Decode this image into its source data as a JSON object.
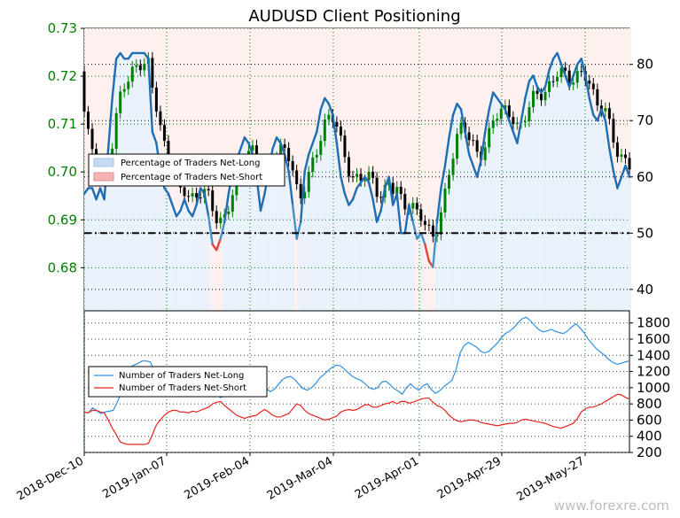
{
  "chart_data": [
    {
      "type": "line",
      "title": "AUDUSD Client Positioning",
      "x_ticks": [
        "2018-Dec-10",
        "2019-Jan-07",
        "2019-Feb-04",
        "2019-Mar-04",
        "2019-Apr-01",
        "2019-Apr-29",
        "2019-May-27"
      ],
      "y_left_ticks": [
        "0.68",
        "0.69",
        "0.70",
        "0.71",
        "0.72",
        "0.73"
      ],
      "y_left_range": [
        0.671,
        0.73
      ],
      "y_right_ticks": [
        "40",
        "50",
        "60",
        "70",
        "80"
      ],
      "y_right_range": [
        36.2,
        86.4
      ],
      "reference_line": 50,
      "grid": true,
      "legend_position": "center-left",
      "series": [
        {
          "name": "Percentage of Traders Net-Long",
          "color": "#c6dbf2",
          "line_color": "#1f6db3",
          "values": [
            57,
            58,
            58,
            56,
            58,
            56,
            65,
            74,
            81,
            82,
            81,
            81,
            82,
            82,
            82,
            82,
            81,
            68,
            66,
            61,
            58,
            57,
            55,
            53,
            54,
            56,
            54,
            53,
            55,
            58,
            57,
            53,
            48,
            47,
            49,
            52,
            57,
            61,
            63,
            65,
            67,
            66,
            64,
            60,
            54,
            57,
            61,
            65,
            67,
            66,
            64,
            61,
            55,
            49,
            52,
            61,
            64,
            66,
            68,
            72,
            74,
            73,
            71,
            66,
            60,
            57,
            55,
            56,
            58,
            59,
            60,
            59,
            56,
            52,
            54,
            58,
            60,
            55,
            57,
            50,
            50,
            55,
            52,
            49,
            50,
            48,
            45,
            44,
            52,
            58,
            62,
            67,
            71,
            73,
            72,
            68,
            64,
            62,
            60,
            63,
            68,
            72,
            75,
            74,
            73,
            72,
            70,
            68,
            66,
            70,
            74,
            77,
            78,
            76,
            75,
            76,
            79,
            81,
            82,
            80,
            78,
            76,
            78,
            80,
            81,
            78,
            74,
            71,
            70,
            72,
            70,
            65,
            61,
            58,
            60,
            62,
            60
          ]
        },
        {
          "name": "Percentage of Traders Net-Short",
          "color": "#f4b4b4",
          "line_color": "#e0443c",
          "values": [
            null
          ]
        }
      ],
      "price_ohlc_note": "Candlestick price series in the background (AUDUSD, range 0.673–0.729)"
    },
    {
      "type": "line",
      "y_ticks": [
        "200",
        "400",
        "600",
        "800",
        "1000",
        "1200",
        "1400",
        "1600",
        "1800"
      ],
      "y_range": [
        200,
        1950
      ],
      "legend_position": "center-left",
      "grid": true,
      "series": [
        {
          "name": "Number of Traders Net-Long",
          "color": "#2f8fe0",
          "values": [
            700,
            690,
            750,
            720,
            680,
            700,
            710,
            720,
            820,
            940,
            1150,
            1250,
            1280,
            1300,
            1330,
            1330,
            1320,
            1210,
            1090,
            1000,
            980,
            960,
            930,
            930,
            940,
            960,
            970,
            1000,
            1020,
            980,
            960,
            930,
            910,
            880,
            900,
            960,
            1000,
            1040,
            1120,
            1150,
            1180,
            1140,
            1100,
            1060,
            1000,
            950,
            980,
            1040,
            1100,
            1130,
            1140,
            1100,
            1040,
            990,
            970,
            1000,
            1050,
            1120,
            1160,
            1210,
            1250,
            1280,
            1270,
            1230,
            1180,
            1140,
            1110,
            1090,
            1050,
            1000,
            980,
            1000,
            1070,
            1080,
            1040,
            990,
            960,
            920,
            1000,
            1050,
            1000,
            970,
            1020,
            1050,
            980,
            930,
            960,
            1010,
            1050,
            1090,
            1220,
            1430,
            1520,
            1560,
            1530,
            1500,
            1450,
            1430,
            1450,
            1500,
            1550,
            1620,
            1670,
            1700,
            1740,
            1800,
            1850,
            1870,
            1830,
            1770,
            1720,
            1690,
            1700,
            1720,
            1700,
            1680,
            1670,
            1700,
            1750,
            1790,
            1740,
            1680,
            1600,
            1540,
            1480,
            1440,
            1400,
            1350,
            1310,
            1290,
            1300,
            1320,
            1330
          ]
        },
        {
          "name": "Number of Traders Net-Short",
          "color": "#e8231f",
          "values": [
            700,
            690,
            720,
            720,
            700,
            690,
            600,
            500,
            420,
            330,
            310,
            300,
            300,
            300,
            300,
            300,
            310,
            420,
            540,
            600,
            660,
            700,
            720,
            720,
            700,
            700,
            690,
            710,
            700,
            720,
            740,
            760,
            800,
            820,
            830,
            780,
            740,
            700,
            660,
            640,
            620,
            640,
            650,
            660,
            700,
            730,
            700,
            660,
            640,
            640,
            660,
            680,
            740,
            800,
            780,
            720,
            680,
            660,
            640,
            620,
            600,
            610,
            630,
            650,
            700,
            720,
            730,
            720,
            730,
            760,
            790,
            790,
            760,
            760,
            780,
            800,
            810,
            830,
            800,
            830,
            830,
            810,
            820,
            840,
            860,
            870,
            870,
            820,
            780,
            760,
            720,
            660,
            620,
            590,
            580,
            590,
            600,
            600,
            590,
            570,
            560,
            550,
            540,
            530,
            540,
            550,
            560,
            560,
            570,
            600,
            610,
            600,
            590,
            580,
            570,
            560,
            540,
            520,
            510,
            500,
            520,
            540,
            560,
            620,
            700,
            740,
            760,
            760,
            780,
            800,
            830,
            860,
            890,
            920,
            910,
            880,
            860
          ]
        }
      ]
    }
  ],
  "watermark": "www.forexre.com"
}
